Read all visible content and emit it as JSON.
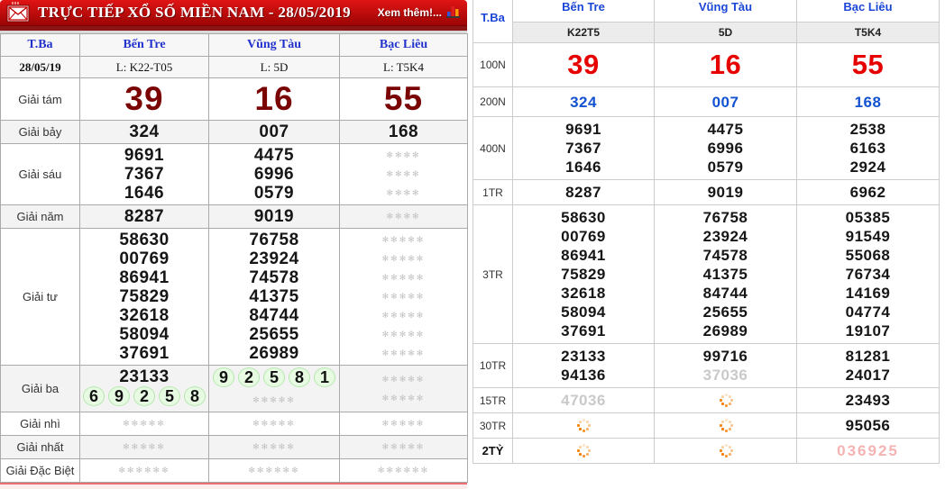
{
  "header": {
    "title": "TRỰC TIẾP XỔ SỐ MIỀN NAM - 28/05/2019",
    "see_more": "Xem thêm!...",
    "envelope_icon": "envelope-icon",
    "chart_icon": "bar-chart-icon"
  },
  "icons": {
    "pending_char": "✻"
  },
  "colors": {
    "titlebar_red": "#c40000",
    "giant_number_red": "#7a0404",
    "big_red": "#e60000",
    "blue_number": "#1353d1",
    "header_blue": "#2233cc",
    "pending_gray": "#c9c9c9",
    "pink_number": "#f4b3b3",
    "green_digit_bg": "#e7fbe3",
    "loader_orange": "#f57d00"
  },
  "live_table": {
    "day_label": "T.Ba",
    "provinces": [
      "Bến Tre",
      "Vũng Tàu",
      "Bạc Liêu"
    ],
    "date": "28/05/19",
    "codes": [
      "L: K22-T05",
      "L: 5D",
      "L: T5K4"
    ],
    "prize_rows": [
      {
        "label": "Giải tám",
        "cls": "giant",
        "cells": [
          [
            {
              "t": "num",
              "v": "39"
            }
          ],
          [
            {
              "t": "num",
              "v": "16"
            }
          ],
          [
            {
              "t": "num",
              "v": "55"
            }
          ]
        ]
      },
      {
        "label": "Giải bảy",
        "cls": "",
        "cells": [
          [
            {
              "t": "num",
              "v": "324"
            }
          ],
          [
            {
              "t": "num",
              "v": "007"
            }
          ],
          [
            {
              "t": "num",
              "v": "168"
            }
          ]
        ]
      },
      {
        "label": "Giải sáu",
        "cls": "",
        "cells": [
          [
            {
              "t": "num",
              "v": "9691"
            },
            {
              "t": "num",
              "v": "7367"
            },
            {
              "t": "num",
              "v": "1646"
            }
          ],
          [
            {
              "t": "num",
              "v": "4475"
            },
            {
              "t": "num",
              "v": "6996"
            },
            {
              "t": "num",
              "v": "0579"
            }
          ],
          [
            {
              "t": "sp",
              "n": 4
            },
            {
              "t": "sp",
              "n": 4
            },
            {
              "t": "sp",
              "n": 4
            }
          ]
        ]
      },
      {
        "label": "Giải năm",
        "cls": "",
        "cells": [
          [
            {
              "t": "num",
              "v": "8287"
            }
          ],
          [
            {
              "t": "num",
              "v": "9019"
            }
          ],
          [
            {
              "t": "sp",
              "n": 4
            }
          ]
        ]
      },
      {
        "label": "Giải tư",
        "cls": "",
        "cells": [
          [
            {
              "t": "num",
              "v": "58630"
            },
            {
              "t": "num",
              "v": "00769"
            },
            {
              "t": "num",
              "v": "86941"
            },
            {
              "t": "num",
              "v": "75829"
            },
            {
              "t": "num",
              "v": "32618"
            },
            {
              "t": "num",
              "v": "58094"
            },
            {
              "t": "num",
              "v": "37691"
            }
          ],
          [
            {
              "t": "num",
              "v": "76758"
            },
            {
              "t": "num",
              "v": "23924"
            },
            {
              "t": "num",
              "v": "74578"
            },
            {
              "t": "num",
              "v": "41375"
            },
            {
              "t": "num",
              "v": "84744"
            },
            {
              "t": "num",
              "v": "25655"
            },
            {
              "t": "num",
              "v": "26989"
            }
          ],
          [
            {
              "t": "sp",
              "n": 5
            },
            {
              "t": "sp",
              "n": 5
            },
            {
              "t": "sp",
              "n": 5
            },
            {
              "t": "sp",
              "n": 5
            },
            {
              "t": "sp",
              "n": 5
            },
            {
              "t": "sp",
              "n": 5
            },
            {
              "t": "sp",
              "n": 5
            }
          ]
        ]
      },
      {
        "label": "Giải ba",
        "cls": "",
        "cells": [
          [
            {
              "t": "num",
              "v": "23133"
            },
            {
              "t": "green",
              "v": "69258"
            }
          ],
          [
            {
              "t": "green",
              "v": "92581"
            },
            {
              "t": "sp",
              "n": 5
            }
          ],
          [
            {
              "t": "sp",
              "n": 5
            },
            {
              "t": "sp",
              "n": 5
            }
          ]
        ]
      },
      {
        "label": "Giải nhì",
        "cls": "",
        "cells": [
          [
            {
              "t": "sp",
              "n": 5
            }
          ],
          [
            {
              "t": "sp",
              "n": 5
            }
          ],
          [
            {
              "t": "sp",
              "n": 5
            }
          ]
        ]
      },
      {
        "label": "Giải nhất",
        "cls": "",
        "cells": [
          [
            {
              "t": "sp",
              "n": 5
            }
          ],
          [
            {
              "t": "sp",
              "n": 5
            }
          ],
          [
            {
              "t": "sp",
              "n": 5
            }
          ]
        ]
      },
      {
        "label": "Giải Đặc Biệt",
        "cls": "",
        "cells": [
          [
            {
              "t": "sp",
              "n": 6
            }
          ],
          [
            {
              "t": "sp",
              "n": 6
            }
          ],
          [
            {
              "t": "sp",
              "n": 6
            }
          ]
        ]
      }
    ]
  },
  "summary_table": {
    "day_label": "T.Ba",
    "provinces": [
      "Bến Tre",
      "Vũng Tàu",
      "Bạc Liêu"
    ],
    "codes": [
      "K22T5",
      "5D",
      "T5K4"
    ],
    "prize_rows": [
      {
        "label": "100N",
        "cls": "redbig",
        "bold": false,
        "cells": [
          [
            {
              "t": "num",
              "v": "39"
            }
          ],
          [
            {
              "t": "num",
              "v": "16"
            }
          ],
          [
            {
              "t": "num",
              "v": "55"
            }
          ]
        ]
      },
      {
        "label": "200N",
        "cls": "bluerow",
        "bold": false,
        "cells": [
          [
            {
              "t": "num",
              "v": "324"
            }
          ],
          [
            {
              "t": "num",
              "v": "007"
            }
          ],
          [
            {
              "t": "num",
              "v": "168"
            }
          ]
        ]
      },
      {
        "label": "400N",
        "cls": "",
        "bold": false,
        "cells": [
          [
            {
              "t": "num",
              "v": "9691"
            },
            {
              "t": "num",
              "v": "7367"
            },
            {
              "t": "num",
              "v": "1646"
            }
          ],
          [
            {
              "t": "num",
              "v": "4475"
            },
            {
              "t": "num",
              "v": "6996"
            },
            {
              "t": "num",
              "v": "0579"
            }
          ],
          [
            {
              "t": "num",
              "v": "2538"
            },
            {
              "t": "num",
              "v": "6163"
            },
            {
              "t": "num",
              "v": "2924"
            }
          ]
        ]
      },
      {
        "label": "1TR",
        "cls": "",
        "bold": false,
        "cells": [
          [
            {
              "t": "num",
              "v": "8287"
            }
          ],
          [
            {
              "t": "num",
              "v": "9019"
            }
          ],
          [
            {
              "t": "num",
              "v": "6962"
            }
          ]
        ]
      },
      {
        "label": "3TR",
        "cls": "",
        "bold": false,
        "cells": [
          [
            {
              "t": "num",
              "v": "58630"
            },
            {
              "t": "num",
              "v": "00769"
            },
            {
              "t": "num",
              "v": "86941"
            },
            {
              "t": "num",
              "v": "75829"
            },
            {
              "t": "num",
              "v": "32618"
            },
            {
              "t": "num",
              "v": "58094"
            },
            {
              "t": "num",
              "v": "37691"
            }
          ],
          [
            {
              "t": "num",
              "v": "76758"
            },
            {
              "t": "num",
              "v": "23924"
            },
            {
              "t": "num",
              "v": "74578"
            },
            {
              "t": "num",
              "v": "41375"
            },
            {
              "t": "num",
              "v": "84744"
            },
            {
              "t": "num",
              "v": "25655"
            },
            {
              "t": "num",
              "v": "26989"
            }
          ],
          [
            {
              "t": "num",
              "v": "05385"
            },
            {
              "t": "num",
              "v": "91549"
            },
            {
              "t": "num",
              "v": "55068"
            },
            {
              "t": "num",
              "v": "76734"
            },
            {
              "t": "num",
              "v": "14169"
            },
            {
              "t": "num",
              "v": "04774"
            },
            {
              "t": "num",
              "v": "19107"
            }
          ]
        ]
      },
      {
        "label": "10TR",
        "cls": "",
        "bold": false,
        "cells": [
          [
            {
              "t": "num",
              "v": "23133"
            },
            {
              "t": "num",
              "v": "94136"
            }
          ],
          [
            {
              "t": "num",
              "v": "99716"
            },
            {
              "t": "gray",
              "v": "37036"
            }
          ],
          [
            {
              "t": "num",
              "v": "81281"
            },
            {
              "t": "num",
              "v": "24017"
            }
          ]
        ]
      },
      {
        "label": "15TR",
        "cls": "",
        "bold": false,
        "cells": [
          [
            {
              "t": "gray",
              "v": "47036"
            }
          ],
          [
            {
              "t": "load"
            }
          ],
          [
            {
              "t": "num",
              "v": "23493"
            }
          ]
        ]
      },
      {
        "label": "30TR",
        "cls": "",
        "bold": false,
        "cells": [
          [
            {
              "t": "load"
            }
          ],
          [
            {
              "t": "load"
            }
          ],
          [
            {
              "t": "num",
              "v": "95056"
            }
          ]
        ]
      },
      {
        "label": "2TỶ",
        "cls": "",
        "bold": true,
        "cells": [
          [
            {
              "t": "load"
            }
          ],
          [
            {
              "t": "load"
            }
          ],
          [
            {
              "t": "pink",
              "v": "036925"
            }
          ]
        ]
      }
    ]
  }
}
